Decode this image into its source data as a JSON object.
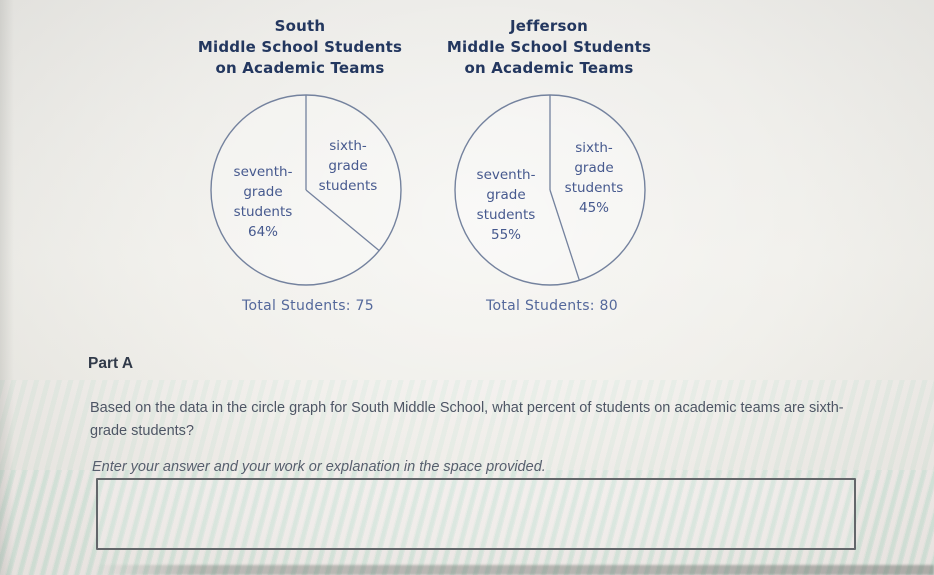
{
  "colors": {
    "title_text": "#23375f",
    "chart_label": "#46598e",
    "total_text": "#54689b",
    "heading_text": "#313a49",
    "body_text": "#4e5665",
    "instruction_text": "#575f6e",
    "pie_outline": "#74829e",
    "answer_box_border": "#63666a"
  },
  "charts": [
    {
      "title": "South\nMiddle School Students\non Academic Teams",
      "label_sixth": "sixth-\ngrade\nstudents",
      "label_seventh": "seventh-\ngrade\nstudents\n64%",
      "total": "Total Students: 75"
    },
    {
      "title": "Jefferson\nMiddle School Students\non Academic Teams",
      "label_sixth": "sixth-\ngrade\nstudents\n45%",
      "label_seventh": "seventh-\ngrade\nstudents\n55%",
      "total": "Total Students: 80"
    }
  ],
  "chart_data": [
    {
      "type": "pie",
      "title": "South Middle School Students on Academic Teams",
      "slices": [
        {
          "label": "sixth-grade students",
          "percent": 36,
          "percent_shown": false
        },
        {
          "label": "seventh-grade students",
          "percent": 64,
          "percent_shown": true
        }
      ],
      "start_angle_deg": 0,
      "direction": "clockwise",
      "footer": "Total Students: 75",
      "fill": "none",
      "outline_color": "#74829e"
    },
    {
      "type": "pie",
      "title": "Jefferson Middle School Students on Academic Teams",
      "slices": [
        {
          "label": "sixth-grade students",
          "percent": 45,
          "percent_shown": true
        },
        {
          "label": "seventh-grade students",
          "percent": 55,
          "percent_shown": true
        }
      ],
      "start_angle_deg": 0,
      "direction": "clockwise",
      "footer": "Total Students: 80",
      "fill": "none",
      "outline_color": "#74829e"
    }
  ],
  "part_a": {
    "heading": "Part A",
    "question": "Based on the data in the circle graph for South Middle School, what percent of students on academic teams are sixth-grade students?",
    "instruction": "Enter your answer and your work or explanation in the space provided.",
    "answer_value": ""
  }
}
